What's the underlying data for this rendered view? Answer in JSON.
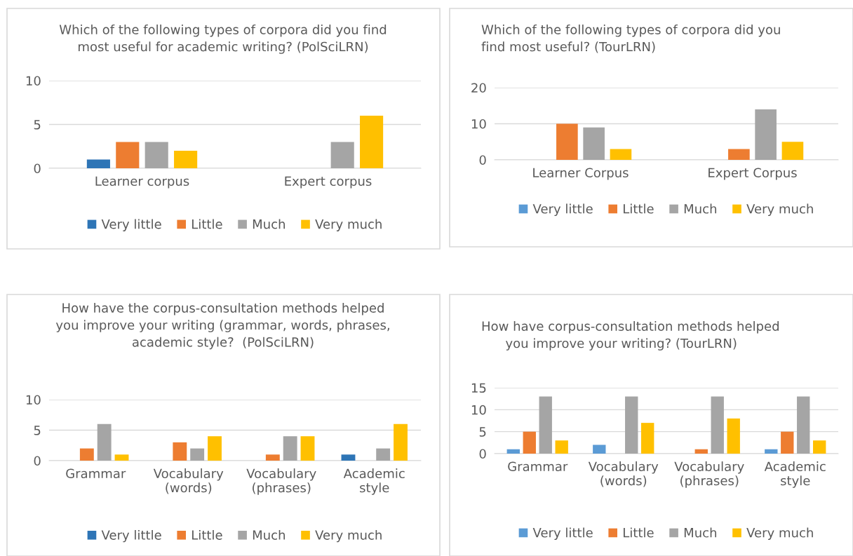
{
  "chart_data": [
    {
      "type": "bar",
      "title": "Which of the following types of corpora did you find\nmost useful for academic writing? (PolSciLRN)",
      "categories": [
        "Learner corpus",
        "Expert corpus"
      ],
      "series": [
        {
          "name": "Very little",
          "color": "#2e75b6",
          "values": [
            1,
            0
          ]
        },
        {
          "name": "Little",
          "color": "#ed7d31",
          "values": [
            3,
            0
          ]
        },
        {
          "name": "Much",
          "color": "#a5a5a5",
          "values": [
            3,
            3
          ]
        },
        {
          "name": "Very much",
          "color": "#ffc000",
          "values": [
            2,
            6
          ]
        }
      ],
      "ylim": [
        0,
        10
      ],
      "yticks": [
        0,
        5,
        10
      ],
      "grid": "y",
      "legend": "bottom"
    },
    {
      "type": "bar",
      "title": "Which of the following types of corpora did you\nfind most useful? (TourLRN)",
      "categories": [
        "Learner Corpus",
        "Expert Corpus"
      ],
      "series": [
        {
          "name": "Very little",
          "color": "#5b9bd5",
          "values": [
            0,
            0
          ]
        },
        {
          "name": "Little",
          "color": "#ed7d31",
          "values": [
            10,
            3
          ]
        },
        {
          "name": "Much",
          "color": "#a5a5a5",
          "values": [
            9,
            14
          ]
        },
        {
          "name": "Very much",
          "color": "#ffc000",
          "values": [
            3,
            5
          ]
        }
      ],
      "ylim": [
        0,
        20
      ],
      "yticks": [
        0,
        10,
        20
      ],
      "grid": "y",
      "legend": "bottom"
    },
    {
      "type": "bar",
      "title": "How have the corpus-consultation methods helped\nyou improve your writing (grammar, words, phrases,\nacademic style?  (PolSciLRN)",
      "categories": [
        "Grammar",
        "Vocabulary\n(words)",
        "Vocabulary\n(phrases)",
        "Academic\nstyle"
      ],
      "series": [
        {
          "name": "Very little",
          "color": "#2e75b6",
          "values": [
            0,
            0,
            0,
            1
          ]
        },
        {
          "name": "Little",
          "color": "#ed7d31",
          "values": [
            2,
            3,
            1,
            0
          ]
        },
        {
          "name": "Much",
          "color": "#a5a5a5",
          "values": [
            6,
            2,
            4,
            2
          ]
        },
        {
          "name": "Very much",
          "color": "#ffc000",
          "values": [
            1,
            4,
            4,
            6
          ]
        }
      ],
      "ylim": [
        0,
        10
      ],
      "yticks": [
        0,
        5,
        10
      ],
      "grid": "y",
      "legend": "bottom"
    },
    {
      "type": "bar",
      "title": "How have corpus-consultation methods helped\n      you improve your writing? (TourLRN)",
      "categories": [
        "Grammar",
        "Vocabulary\n(words)",
        "Vocabulary\n(phrases)",
        "Academic\nstyle"
      ],
      "series": [
        {
          "name": "Very little",
          "color": "#5b9bd5",
          "values": [
            1,
            2,
            0,
            1
          ]
        },
        {
          "name": "Little",
          "color": "#ed7d31",
          "values": [
            5,
            0,
            1,
            5
          ]
        },
        {
          "name": "Much",
          "color": "#a5a5a5",
          "values": [
            13,
            13,
            13,
            13
          ]
        },
        {
          "name": "Very much",
          "color": "#ffc000",
          "values": [
            3,
            7,
            8,
            3
          ]
        }
      ],
      "ylim": [
        0,
        15
      ],
      "yticks": [
        0,
        5,
        10,
        15
      ],
      "grid": "y",
      "legend": "bottom"
    }
  ]
}
